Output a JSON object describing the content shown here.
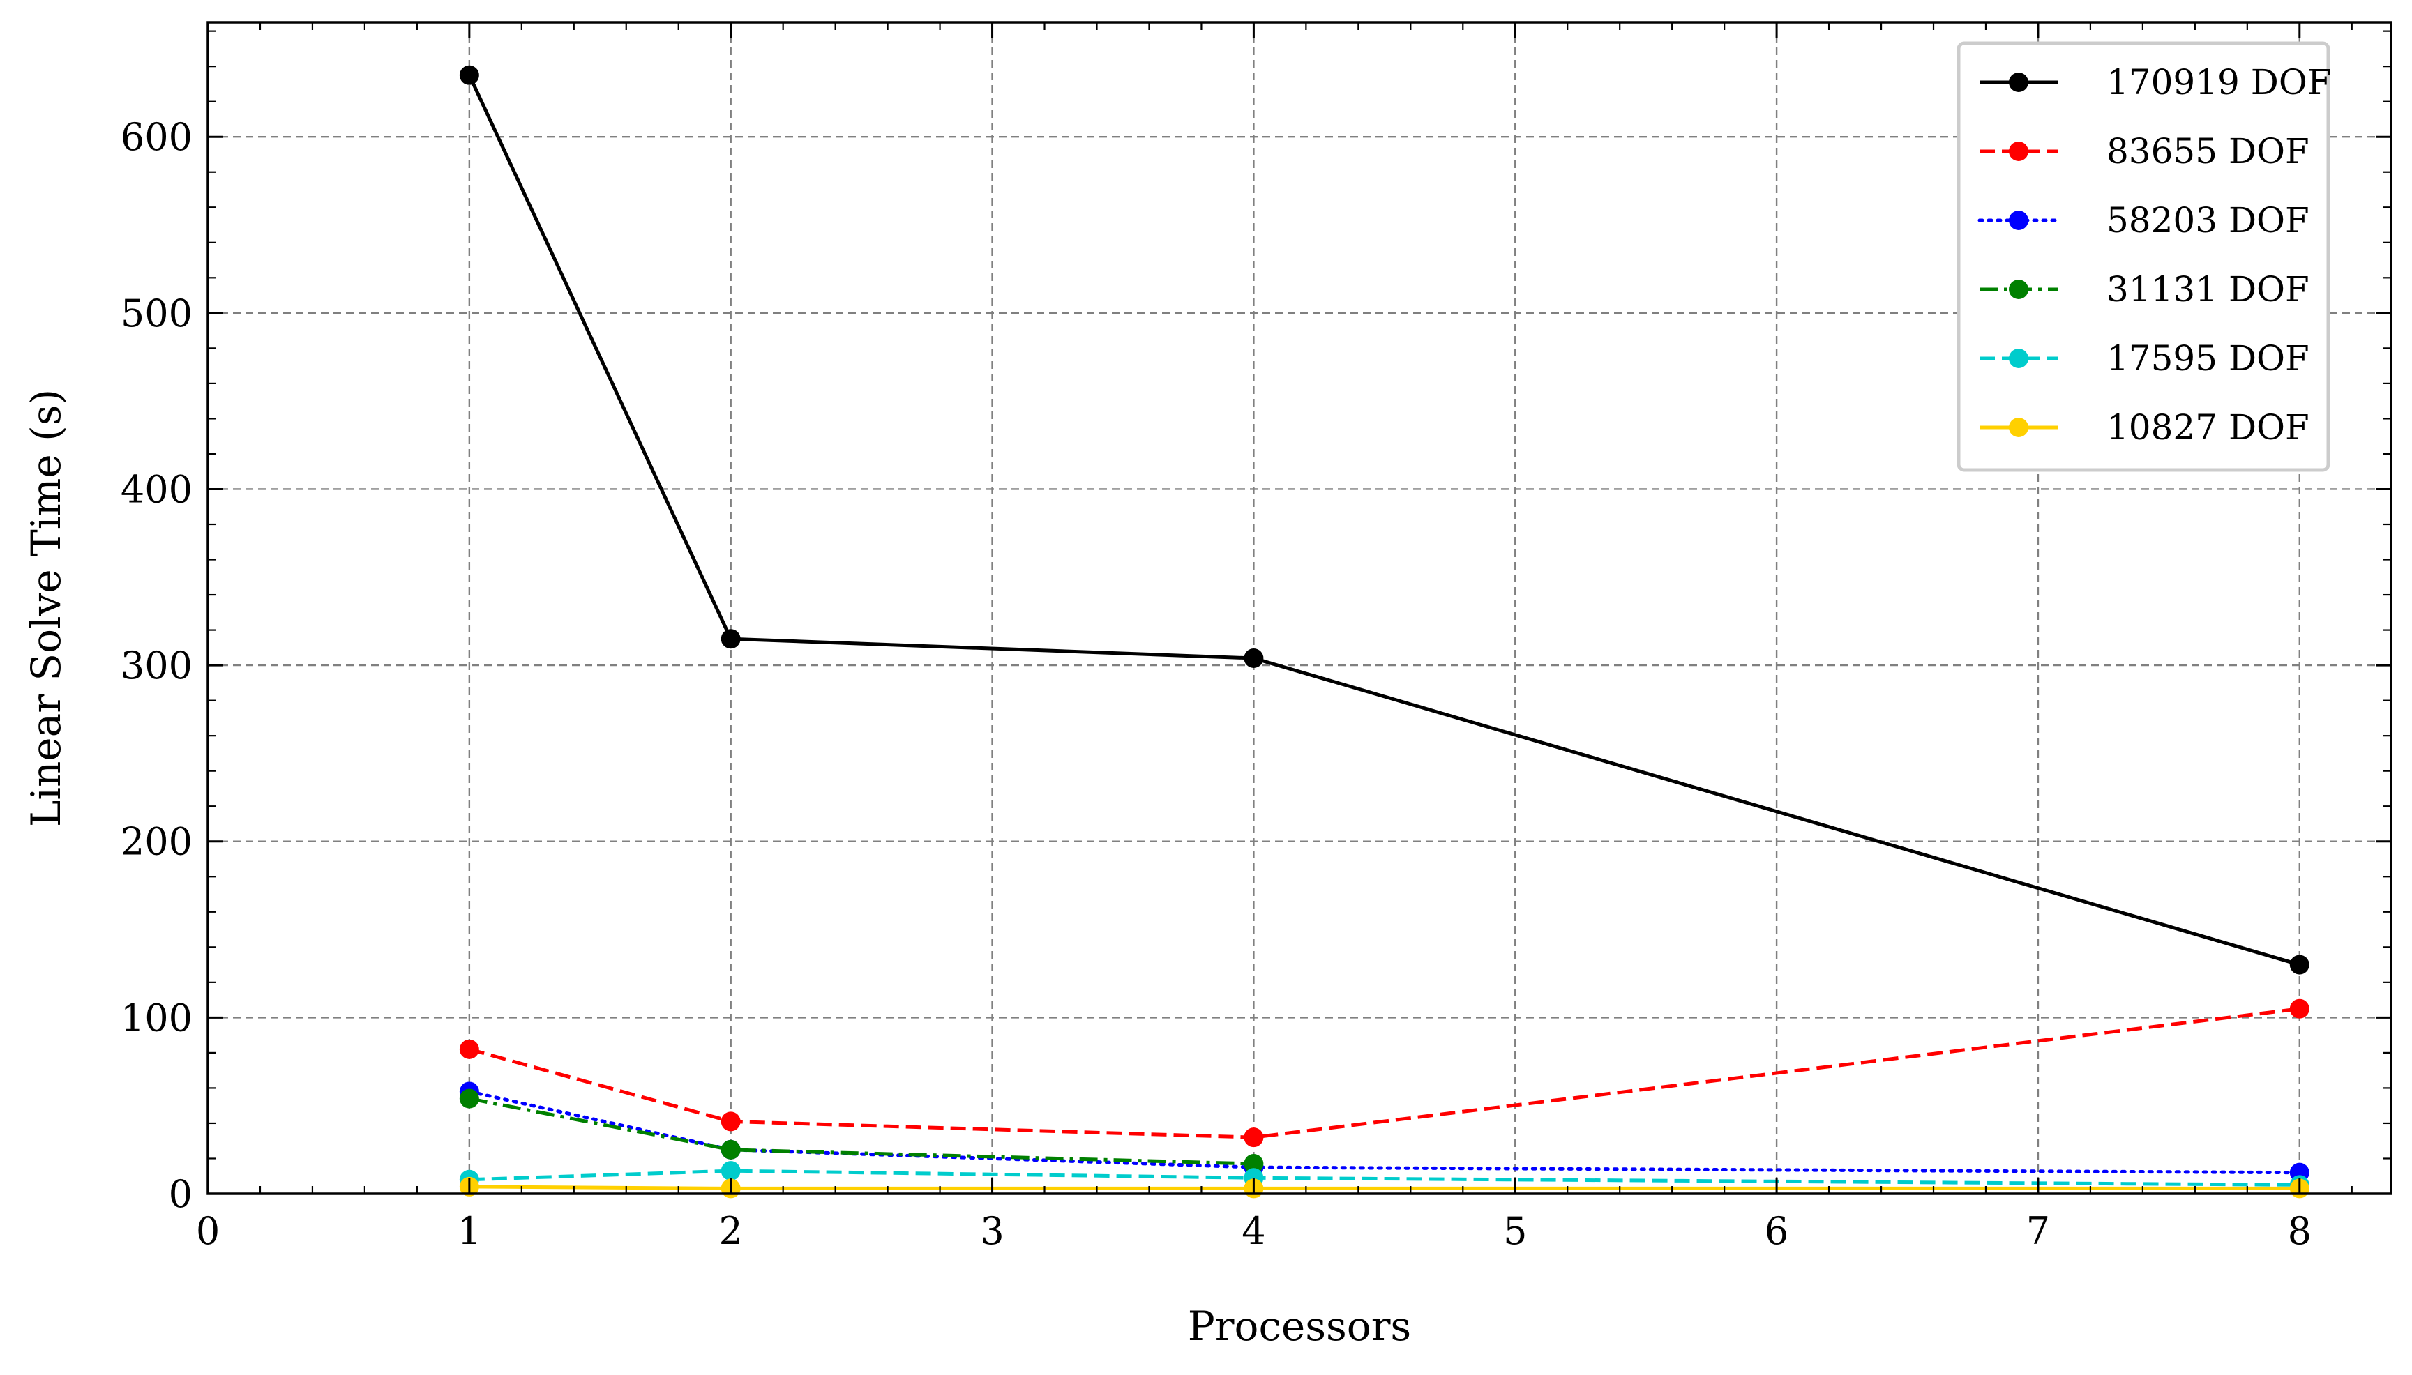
{
  "chart_data": {
    "type": "line",
    "xlabel": "Processors",
    "ylabel": "Linear Solve Time (s)",
    "xlim": [
      0,
      8.35
    ],
    "ylim": [
      0,
      665
    ],
    "xticks": [
      0,
      1,
      2,
      3,
      4,
      5,
      6,
      7,
      8
    ],
    "yticks": [
      0,
      100,
      200,
      300,
      400,
      500,
      600
    ],
    "grid": true,
    "legend_position": "top-right",
    "x": [
      1,
      2,
      4,
      8
    ],
    "series": [
      {
        "name": "170919 DOF",
        "values": [
          635,
          315,
          304,
          130
        ],
        "color": "#000000",
        "dash": "solid"
      },
      {
        "name": "83655 DOF",
        "values": [
          82,
          41,
          32,
          105
        ],
        "color": "#ff0000",
        "dash": "dashed"
      },
      {
        "name": "58203 DOF",
        "values": [
          58,
          25,
          15,
          12
        ],
        "color": "#0000ff",
        "dash": "dotted"
      },
      {
        "name": "31131 DOF",
        "values": [
          54,
          25,
          17,
          null
        ],
        "color": "#008000",
        "dash": "dashdot"
      },
      {
        "name": "17595 DOF",
        "values": [
          8,
          13,
          9,
          5
        ],
        "color": "#00cccc",
        "dash": "dashed"
      },
      {
        "name": "10827 DOF",
        "values": [
          4,
          3,
          3,
          3
        ],
        "color": "#ffd000",
        "dash": "solid"
      }
    ]
  }
}
